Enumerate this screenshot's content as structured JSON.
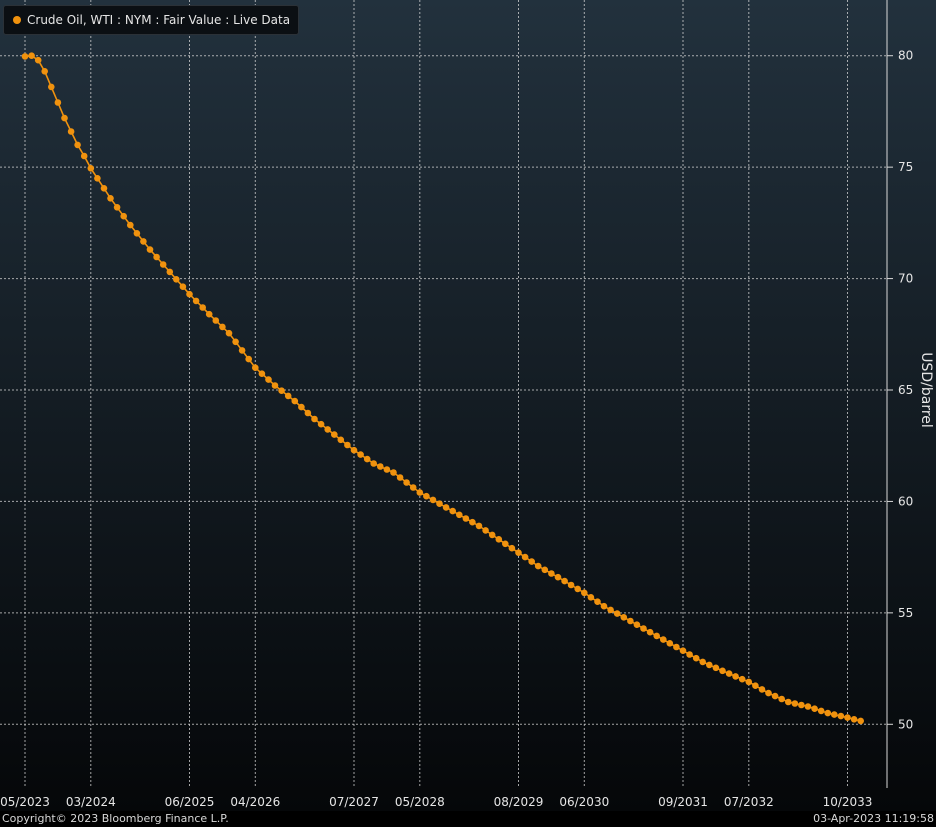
{
  "colors": {
    "background_top": "#22313d",
    "background_bottom": "#050709",
    "series": "#f0920e",
    "grid": "#d8d8d8",
    "text": "#e6e6e6"
  },
  "chart_data": {
    "type": "line",
    "ylabel": "USD/barrel",
    "ylim": [
      47.5,
      82.5
    ],
    "yticks": [
      50,
      55,
      60,
      65,
      70,
      75,
      80
    ],
    "x_tick_labels": [
      "05/2023",
      "03/2024",
      "06/2025",
      "04/2026",
      "07/2027",
      "05/2028",
      "08/2029",
      "06/2030",
      "09/2031",
      "07/2032",
      "10/2033"
    ],
    "x_tick_dates": [
      "2023-05",
      "2024-03",
      "2025-06",
      "2026-04",
      "2027-07",
      "2028-05",
      "2029-08",
      "2030-06",
      "2031-09",
      "2032-07",
      "2033-10"
    ],
    "x_range": [
      "2023-05",
      "2034-01"
    ],
    "grid": true,
    "legend_position": "top-left",
    "series": [
      {
        "name": "Crude Oil, WTI : NYM : Fair Value : Live Data",
        "start": "2023-05",
        "end": "2033-12",
        "points": [
          [
            "2023-05",
            79.97
          ],
          [
            "2023-06",
            80.0
          ],
          [
            "2023-07",
            79.8
          ],
          [
            "2023-08",
            79.3
          ],
          [
            "2023-09",
            78.6
          ],
          [
            "2023-10",
            77.9
          ],
          [
            "2023-11",
            77.2
          ],
          [
            "2023-12",
            76.6
          ],
          [
            "2024-01",
            76.0
          ],
          [
            "2024-02",
            75.5
          ],
          [
            "2024-03",
            74.95
          ],
          [
            "2024-06",
            73.6
          ],
          [
            "2024-09",
            72.4
          ],
          [
            "2024-12",
            71.3
          ],
          [
            "2025-03",
            70.3
          ],
          [
            "2025-06",
            69.3
          ],
          [
            "2025-09",
            68.4
          ],
          [
            "2025-12",
            67.55
          ],
          [
            "2026-04",
            66.0
          ],
          [
            "2026-07",
            65.2
          ],
          [
            "2026-10",
            64.5
          ],
          [
            "2027-01",
            63.7
          ],
          [
            "2027-04",
            63.0
          ],
          [
            "2027-07",
            62.3
          ],
          [
            "2027-10",
            61.7
          ],
          [
            "2028-01",
            61.3
          ],
          [
            "2028-05",
            60.4
          ],
          [
            "2028-08",
            59.9
          ],
          [
            "2028-11",
            59.4
          ],
          [
            "2029-02",
            58.9
          ],
          [
            "2029-05",
            58.3
          ],
          [
            "2029-08",
            57.7
          ],
          [
            "2029-11",
            57.1
          ],
          [
            "2030-02",
            56.6
          ],
          [
            "2030-06",
            55.9
          ],
          [
            "2030-09",
            55.3
          ],
          [
            "2030-12",
            54.8
          ],
          [
            "2031-03",
            54.3
          ],
          [
            "2031-06",
            53.8
          ],
          [
            "2031-09",
            53.3
          ],
          [
            "2031-12",
            52.8
          ],
          [
            "2032-03",
            52.4
          ],
          [
            "2032-07",
            51.9
          ],
          [
            "2032-10",
            51.4
          ],
          [
            "2033-01",
            51.0
          ],
          [
            "2033-04",
            50.8
          ],
          [
            "2033-07",
            50.5
          ],
          [
            "2033-10",
            50.3
          ],
          [
            "2033-12",
            50.15
          ]
        ]
      }
    ]
  },
  "footer": {
    "copyright": "Copyright© 2023 Bloomberg Finance L.P.",
    "timestamp": "03-Apr-2023 11:19:58"
  }
}
